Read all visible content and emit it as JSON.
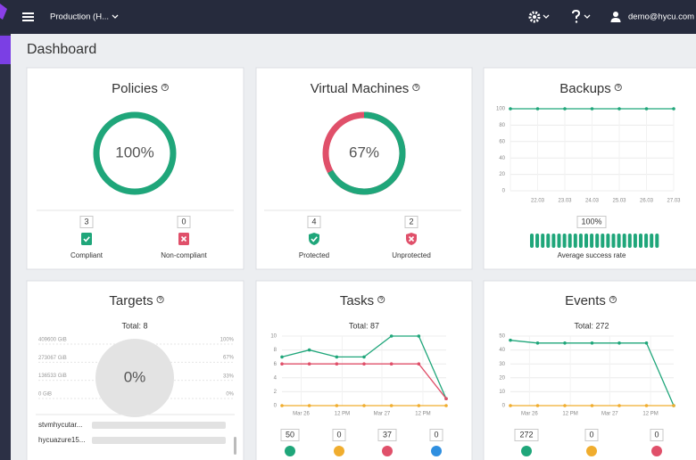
{
  "header": {
    "org": "Production (H...",
    "user": "demo@hycu.com"
  },
  "page_title": "Dashboard",
  "cards": {
    "policies": {
      "title": "Policies",
      "chart_data": {
        "type": "donut",
        "value": 100,
        "value_label": "100%",
        "color": "#1fa67a"
      },
      "stats": [
        {
          "count": 3,
          "label": "Compliant",
          "color": "#1fa67a"
        },
        {
          "count": 0,
          "label": "Non-compliant",
          "color": "#e0506a"
        }
      ]
    },
    "vms": {
      "title": "Virtual Machines",
      "chart_data": {
        "type": "donut",
        "value": 67,
        "value_label": "67%",
        "color": "#1fa67a",
        "rest_color": "#e0506a"
      },
      "stats": [
        {
          "count": 4,
          "label": "Protected",
          "color": "#1fa67a"
        },
        {
          "count": 2,
          "label": "Unprotected",
          "color": "#e0506a"
        }
      ]
    },
    "backups": {
      "title": "Backups",
      "chart_data": {
        "type": "line",
        "categories": [
          null,
          "22.03",
          "23.03",
          "24.03",
          "25.03",
          "26.03",
          "27.03"
        ],
        "series": [
          {
            "color": "#1fa67a",
            "values": [
              100,
              100,
              100,
              100,
              100,
              100,
              100
            ]
          }
        ],
        "ylim": [
          0,
          100
        ],
        "yticks": [
          0,
          20,
          40,
          60,
          80,
          100
        ],
        "grid": true
      },
      "success_rate": {
        "value": 100,
        "label": "100%"
      },
      "success_label": "Average success rate"
    },
    "targets": {
      "title": "Targets",
      "total": "Total: 8",
      "chart_data": {
        "type": "gauge",
        "value": 0,
        "value_label": "0%",
        "ylim": [
          0,
          409600
        ],
        "yticks": [
          {
            "value": 0,
            "label": "0 GiB"
          },
          {
            "value": 136533,
            "label": "136533 GiB"
          },
          {
            "value": 273067,
            "label": "273067 GiB"
          },
          {
            "value": 409600,
            "label": "409600 GiB"
          }
        ],
        "y2lim": [
          0,
          100
        ],
        "y2ticks": [
          {
            "value": 0,
            "label": "0%"
          },
          {
            "value": 33,
            "label": "33%"
          },
          {
            "value": 67,
            "label": "67%"
          },
          {
            "value": 100,
            "label": "100%"
          }
        ]
      },
      "rows": [
        "stvmhycutar...",
        "hycuazure15..."
      ]
    },
    "tasks": {
      "title": "Tasks",
      "total": "Total: 87",
      "chart_data": {
        "type": "line",
        "xlim": [
          0,
          6
        ],
        "xticks": [
          {
            "value": 0.7,
            "label": "Mar 26"
          },
          {
            "value": 2.2,
            "label": "12 PM"
          },
          {
            "value": 3.65,
            "label": "Mar 27"
          },
          {
            "value": 5.15,
            "label": "12 PM"
          }
        ],
        "series": [
          {
            "color": "#1fa67a",
            "values": [
              7,
              8,
              7,
              7,
              10,
              10,
              1
            ]
          },
          {
            "color": "#e0506a",
            "values": [
              6,
              6,
              6,
              6,
              6,
              6,
              1
            ]
          },
          {
            "color": "#f0ad2e",
            "values": [
              0,
              0,
              0,
              0,
              0,
              0,
              0
            ]
          }
        ],
        "ylim": [
          0,
          10
        ],
        "yticks": [
          0,
          2,
          4,
          6,
          8,
          10
        ],
        "grid": true
      },
      "counts": [
        {
          "count": 50,
          "color": "#1fa67a"
        },
        {
          "count": 0,
          "color": "#f0ad2e"
        },
        {
          "count": 37,
          "color": "#e0506a"
        },
        {
          "count": 0,
          "color": "#2f8fe0"
        }
      ]
    },
    "events": {
      "title": "Events",
      "total": "Total: 272",
      "chart_data": {
        "type": "line",
        "xlim": [
          0,
          6
        ],
        "xticks": [
          {
            "value": 0.7,
            "label": "Mar 26"
          },
          {
            "value": 2.2,
            "label": "12 PM"
          },
          {
            "value": 3.65,
            "label": "Mar 27"
          },
          {
            "value": 5.15,
            "label": "12 PM"
          }
        ],
        "series": [
          {
            "color": "#1fa67a",
            "values": [
              47,
              45,
              45,
              45,
              45,
              45,
              0
            ]
          },
          {
            "color": "#f0ad2e",
            "values": [
              0,
              0,
              0,
              0,
              0,
              0,
              0
            ]
          }
        ],
        "ylim": [
          0,
          50
        ],
        "yticks": [
          0,
          10,
          20,
          30,
          40,
          50
        ],
        "grid": true
      },
      "counts": [
        {
          "count": 272,
          "color": "#1fa67a"
        },
        {
          "count": 0,
          "color": "#f0ad2e"
        },
        {
          "count": 0,
          "color": "#e0506a"
        }
      ]
    }
  }
}
